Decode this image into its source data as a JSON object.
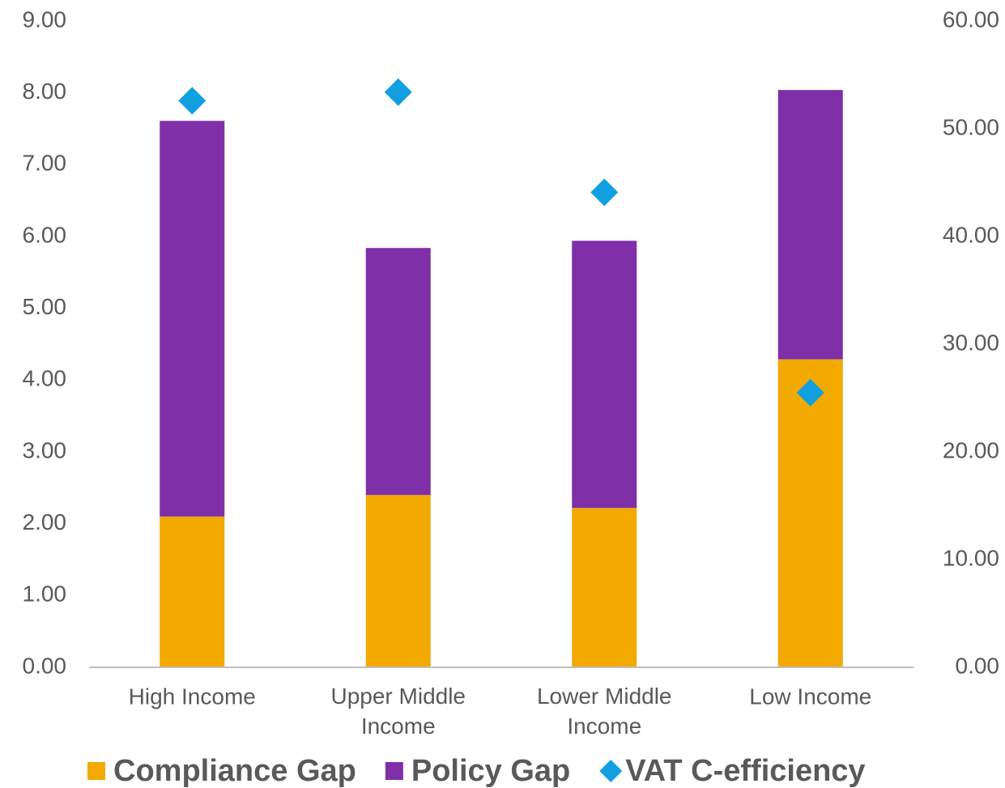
{
  "chart_data": {
    "type": "bar",
    "stacked": true,
    "categories": [
      "High Income",
      "Upper Middle Income",
      "Lower Middle Income",
      "Low Income"
    ],
    "series": [
      {
        "name": "Compliance Gap",
        "color": "#f2a900",
        "values": [
          2.1,
          2.4,
          2.22,
          4.29
        ]
      },
      {
        "name": "Policy Gap",
        "color": "#7f2fa8",
        "values": [
          5.51,
          3.44,
          3.72,
          3.75
        ]
      },
      {
        "name": "VAT C-efficiency",
        "color": "#129fdf",
        "type": "scatter",
        "marker": "diamond",
        "axis": "y2",
        "values": [
          52.6,
          53.4,
          44.1,
          25.5
        ]
      }
    ],
    "ylim": [
      0,
      9
    ],
    "yticks": [
      {
        "value": 0,
        "label": "0.00"
      },
      {
        "value": 1,
        "label": "1.00"
      },
      {
        "value": 2,
        "label": "2.00"
      },
      {
        "value": 3,
        "label": "3.00"
      },
      {
        "value": 4,
        "label": "4.00"
      },
      {
        "value": 5,
        "label": "5.00"
      },
      {
        "value": 6,
        "label": "6.00"
      },
      {
        "value": 7,
        "label": "7.00"
      },
      {
        "value": 8,
        "label": "8.00"
      },
      {
        "value": 9,
        "label": "9.00"
      }
    ],
    "y2lim": [
      0,
      60
    ],
    "y2ticks": [
      {
        "value": 0,
        "label": "0.00"
      },
      {
        "value": 10,
        "label": "10.00"
      },
      {
        "value": 20,
        "label": "20.00"
      },
      {
        "value": 30,
        "label": "30.00"
      },
      {
        "value": 40,
        "label": "40.00"
      },
      {
        "value": 50,
        "label": "50.00"
      },
      {
        "value": 60,
        "label": "60.00"
      }
    ],
    "grid": false,
    "legend": "bottom"
  }
}
